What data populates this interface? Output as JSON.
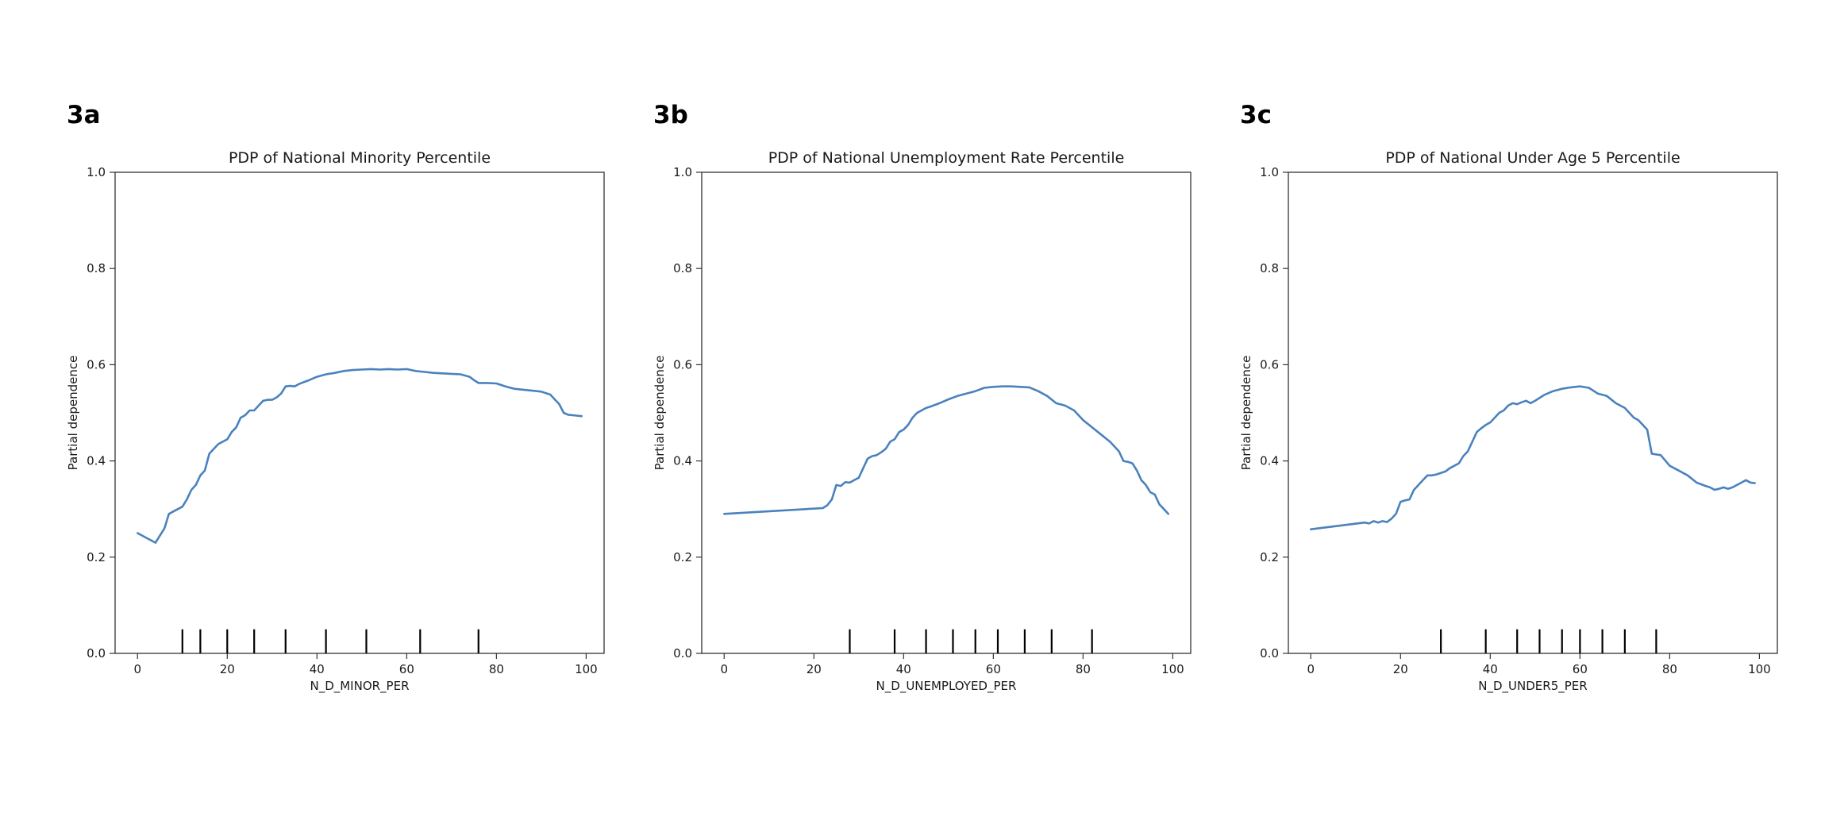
{
  "chart_data": [
    {
      "panel_label": "3a",
      "type": "line",
      "title": "PDP of National Minority Percentile",
      "xlabel": "N_D_MINOR_PER",
      "ylabel": "Partial dependence",
      "xlim": [
        -5,
        104
      ],
      "ylim": [
        0.0,
        1.0
      ],
      "xticks": [
        0,
        20,
        40,
        60,
        80,
        100
      ],
      "yticks": [
        0.0,
        0.2,
        0.4,
        0.6,
        0.8,
        1.0
      ],
      "grid": false,
      "line_color": "#4a82be",
      "series": [
        {
          "x": [
            0,
            2,
            4,
            6,
            7,
            8,
            10,
            11,
            12,
            13,
            14,
            15,
            16,
            17,
            18,
            19,
            20,
            21,
            22,
            23,
            24,
            25,
            26,
            27,
            28,
            29,
            30,
            31,
            32,
            33,
            34,
            35,
            36,
            38,
            40,
            42,
            44,
            46,
            48,
            50,
            52,
            54,
            56,
            58,
            60,
            62,
            64,
            66,
            68,
            70,
            72,
            74,
            75,
            76,
            78,
            80,
            82,
            84,
            86,
            88,
            90,
            92,
            93,
            94,
            95,
            96,
            97,
            99
          ],
          "y": [
            0.25,
            0.24,
            0.23,
            0.26,
            0.29,
            0.295,
            0.305,
            0.32,
            0.34,
            0.35,
            0.37,
            0.38,
            0.415,
            0.425,
            0.435,
            0.44,
            0.445,
            0.46,
            0.47,
            0.49,
            0.495,
            0.505,
            0.505,
            0.515,
            0.525,
            0.527,
            0.527,
            0.532,
            0.54,
            0.555,
            0.556,
            0.555,
            0.56,
            0.567,
            0.575,
            0.58,
            0.583,
            0.587,
            0.589,
            0.59,
            0.591,
            0.59,
            0.591,
            0.59,
            0.591,
            0.587,
            0.585,
            0.583,
            0.582,
            0.581,
            0.58,
            0.575,
            0.568,
            0.562,
            0.562,
            0.561,
            0.555,
            0.55,
            0.548,
            0.546,
            0.544,
            0.538,
            0.528,
            0.518,
            0.5,
            0.496,
            0.495,
            0.493
          ]
        }
      ],
      "rug_deciles": [
        10,
        14,
        20,
        26,
        33,
        42,
        51,
        63,
        76
      ]
    },
    {
      "panel_label": "3b",
      "type": "line",
      "title": "PDP of National Unemployment Rate Percentile",
      "xlabel": "N_D_UNEMPLOYED_PER",
      "ylabel": "Partial dependence",
      "xlim": [
        -5,
        104
      ],
      "ylim": [
        0.0,
        1.0
      ],
      "xticks": [
        0,
        20,
        40,
        60,
        80,
        100
      ],
      "yticks": [
        0.0,
        0.2,
        0.4,
        0.6,
        0.8,
        1.0
      ],
      "grid": false,
      "line_color": "#4a82be",
      "series": [
        {
          "x": [
            0,
            22,
            23,
            24,
            25,
            26,
            27,
            28,
            29,
            30,
            31,
            32,
            33,
            34,
            35,
            36,
            37,
            38,
            39,
            40,
            41,
            42,
            43,
            44,
            45,
            46,
            48,
            50,
            52,
            54,
            56,
            58,
            60,
            62,
            64,
            66,
            68,
            70,
            72,
            74,
            76,
            78,
            80,
            82,
            84,
            86,
            87,
            88,
            89,
            90,
            91,
            92,
            93,
            94,
            95,
            96,
            97,
            98,
            99
          ],
          "y": [
            0.29,
            0.302,
            0.308,
            0.32,
            0.35,
            0.348,
            0.356,
            0.355,
            0.36,
            0.365,
            0.385,
            0.405,
            0.41,
            0.412,
            0.418,
            0.425,
            0.44,
            0.445,
            0.46,
            0.465,
            0.475,
            0.49,
            0.5,
            0.505,
            0.51,
            0.513,
            0.52,
            0.528,
            0.535,
            0.54,
            0.545,
            0.552,
            0.554,
            0.555,
            0.555,
            0.554,
            0.553,
            0.545,
            0.535,
            0.52,
            0.515,
            0.505,
            0.485,
            0.47,
            0.455,
            0.44,
            0.43,
            0.42,
            0.4,
            0.398,
            0.395,
            0.38,
            0.36,
            0.35,
            0.335,
            0.33,
            0.31,
            0.3,
            0.29
          ]
        }
      ],
      "rug_deciles": [
        28,
        38,
        45,
        51,
        56,
        61,
        67,
        73,
        82
      ]
    },
    {
      "panel_label": "3c",
      "type": "line",
      "title": "PDP of National Under Age 5 Percentile",
      "xlabel": "N_D_UNDER5_PER",
      "ylabel": "Partial dependence",
      "xlim": [
        -5,
        104
      ],
      "ylim": [
        0.0,
        1.0
      ],
      "xticks": [
        0,
        20,
        40,
        60,
        80,
        100
      ],
      "yticks": [
        0.0,
        0.2,
        0.4,
        0.6,
        0.8,
        1.0
      ],
      "grid": false,
      "line_color": "#4a82be",
      "series": [
        {
          "x": [
            0,
            12,
            13,
            14,
            15,
            16,
            17,
            18,
            19,
            20,
            21,
            22,
            23,
            24,
            25,
            26,
            27,
            28,
            29,
            30,
            31,
            32,
            33,
            34,
            35,
            36,
            37,
            38,
            39,
            40,
            41,
            42,
            43,
            44,
            45,
            46,
            47,
            48,
            49,
            50,
            52,
            54,
            56,
            58,
            60,
            62,
            64,
            66,
            68,
            70,
            71,
            72,
            73,
            74,
            75,
            76,
            78,
            80,
            82,
            84,
            86,
            88,
            89,
            90,
            91,
            92,
            93,
            94,
            95,
            96,
            97,
            98,
            99
          ],
          "y": [
            0.258,
            0.272,
            0.27,
            0.275,
            0.272,
            0.275,
            0.273,
            0.28,
            0.29,
            0.315,
            0.318,
            0.32,
            0.34,
            0.35,
            0.36,
            0.37,
            0.37,
            0.372,
            0.375,
            0.378,
            0.385,
            0.39,
            0.395,
            0.41,
            0.42,
            0.44,
            0.46,
            0.468,
            0.475,
            0.48,
            0.49,
            0.5,
            0.505,
            0.515,
            0.52,
            0.518,
            0.522,
            0.525,
            0.52,
            0.525,
            0.537,
            0.545,
            0.55,
            0.553,
            0.555,
            0.552,
            0.54,
            0.535,
            0.52,
            0.51,
            0.5,
            0.49,
            0.485,
            0.475,
            0.465,
            0.415,
            0.412,
            0.39,
            0.38,
            0.37,
            0.355,
            0.348,
            0.345,
            0.34,
            0.342,
            0.345,
            0.342,
            0.345,
            0.35,
            0.355,
            0.36,
            0.355,
            0.354
          ]
        }
      ],
      "rug_deciles": [
        29,
        39,
        46,
        51,
        56,
        60,
        65,
        70,
        77
      ]
    }
  ]
}
